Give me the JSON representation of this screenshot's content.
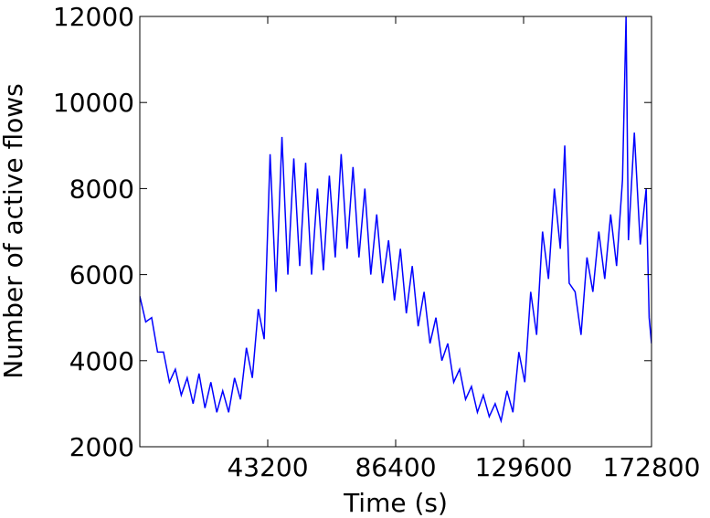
{
  "chart_data": {
    "type": "line",
    "x_label": "Time (s)",
    "y_label": "Number of active flows",
    "xlim": [
      0,
      172800
    ],
    "xticks": [
      43200,
      86400,
      129600,
      172800
    ],
    "ylim": [
      2000,
      12000
    ],
    "yticks": [
      2000,
      4000,
      6000,
      8000,
      10000,
      12000
    ],
    "grid": false,
    "x": [
      0,
      2000,
      4000,
      6000,
      8000,
      10000,
      12000,
      14000,
      16000,
      18000,
      20000,
      22000,
      24000,
      26000,
      28000,
      30000,
      32000,
      34000,
      36000,
      38000,
      40000,
      42000,
      44000,
      46000,
      48000,
      50000,
      52000,
      54000,
      56000,
      58000,
      60000,
      62000,
      64000,
      66000,
      68000,
      70000,
      72000,
      74000,
      76000,
      78000,
      80000,
      82000,
      84000,
      86000,
      88000,
      90000,
      92000,
      94000,
      96000,
      98000,
      100000,
      102000,
      104000,
      106000,
      108000,
      110000,
      112000,
      114000,
      116000,
      118000,
      120000,
      122000,
      124000,
      126000,
      128000,
      130000,
      132000,
      134000,
      136000,
      138000,
      140000,
      142000,
      143500,
      145000,
      147000,
      149000,
      151000,
      153000,
      155000,
      157000,
      159000,
      161000,
      163000,
      164200,
      165000,
      167000,
      169000,
      171000,
      172000,
      172800
    ],
    "series": [
      {
        "color": "#0000ff",
        "values": [
          5500,
          4900,
          5000,
          4200,
          4200,
          3500,
          3800,
          3200,
          3600,
          3000,
          3700,
          2900,
          3500,
          2800,
          3300,
          2800,
          3600,
          3100,
          4300,
          3600,
          5200,
          4500,
          8800,
          5600,
          9200,
          6000,
          8700,
          6200,
          8600,
          6000,
          8000,
          6100,
          8300,
          6400,
          8800,
          6600,
          8500,
          6400,
          8000,
          6000,
          7400,
          5800,
          6800,
          5400,
          6600,
          5100,
          6200,
          4800,
          5600,
          4400,
          5000,
          4000,
          4400,
          3500,
          3800,
          3100,
          3400,
          2800,
          3200,
          2700,
          3000,
          2600,
          3300,
          2800,
          4200,
          3500,
          5600,
          4600,
          7000,
          5900,
          8000,
          6600,
          9000,
          5800,
          5600,
          4600,
          6400,
          5600,
          7000,
          5900,
          7400,
          6200,
          8200,
          12000,
          6800,
          9300,
          6700,
          8000,
          5000,
          4400
        ]
      }
    ]
  }
}
